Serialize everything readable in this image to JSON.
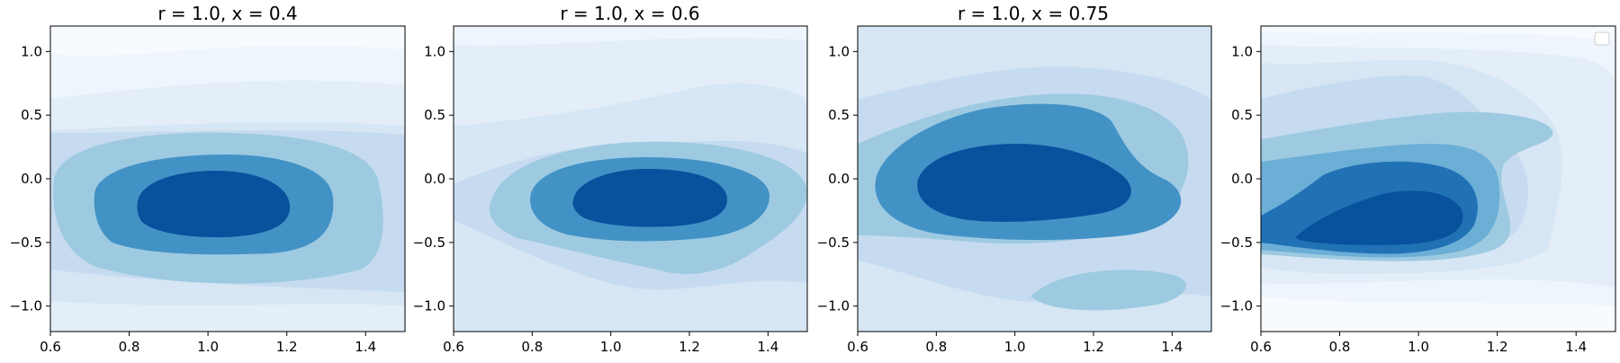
{
  "chart_data": [
    {
      "type": "contour",
      "title": "r = 1.0, x = 0.4",
      "xlim": [
        0.6,
        1.5
      ],
      "ylim": [
        -1.2,
        1.2
      ],
      "xticks": [
        "0.6",
        "0.8",
        "1.0",
        "1.2",
        "1.4"
      ],
      "yticks": [
        "−1.0",
        "−0.5",
        "0.0",
        "0.5",
        "1.0"
      ],
      "colormap": "Blues",
      "peak": [
        1.0,
        -0.2
      ],
      "legend": false
    },
    {
      "type": "contour",
      "title": "r = 1.0, x = 0.6",
      "xlim": [
        0.6,
        1.5
      ],
      "ylim": [
        -1.2,
        1.2
      ],
      "xticks": [
        "0.6",
        "0.8",
        "1.0",
        "1.2",
        "1.4"
      ],
      "yticks": [
        "−1.0",
        "−0.5",
        "0.0",
        "0.5",
        "1.0"
      ],
      "colormap": "Blues",
      "peak": [
        1.1,
        -0.15
      ],
      "legend": false
    },
    {
      "type": "contour",
      "title": "r = 1.0, x = 0.75",
      "xlim": [
        0.6,
        1.5
      ],
      "ylim": [
        -1.2,
        1.2
      ],
      "xticks": [
        "0.6",
        "0.8",
        "1.0",
        "1.2",
        "1.4"
      ],
      "yticks": [
        "−1.0",
        "−0.5",
        "0.0",
        "0.5",
        "1.0"
      ],
      "colormap": "Blues",
      "peak": [
        1.0,
        -0.05
      ],
      "legend": false
    },
    {
      "type": "contour",
      "title": "",
      "xlim": [
        0.6,
        1.5
      ],
      "ylim": [
        -1.2,
        1.2
      ],
      "xticks": [
        "0.6",
        "0.8",
        "1.0",
        "1.2",
        "1.4"
      ],
      "yticks": [
        "−1.0",
        "−0.5",
        "0.0",
        "0.5",
        "1.0"
      ],
      "colormap": "Blues",
      "peak": [
        0.95,
        -0.35
      ],
      "legend": true,
      "legend_position": "top-right"
    }
  ],
  "colors": {
    "level0": "#f7fbff",
    "level1": "#eef5fc",
    "level2": "#e3eef9",
    "level3": "#d6e6f4",
    "level4": "#c6dbef",
    "level5": "#9ecae1",
    "level6": "#6baed6",
    "level7": "#4292c6",
    "level8": "#2171b5",
    "level9": "#08519c"
  }
}
